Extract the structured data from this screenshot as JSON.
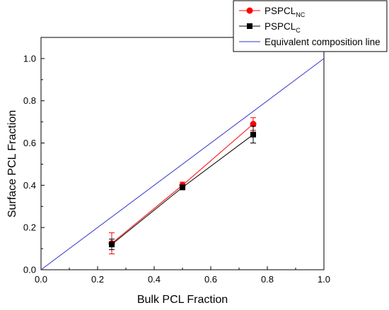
{
  "chart_data": {
    "type": "line",
    "title": "",
    "xlabel": "Bulk PCL Fraction",
    "ylabel": "Surface PCL Fraction",
    "xlim": [
      0.0,
      1.0
    ],
    "ylim": [
      0.0,
      1.1
    ],
    "xticks": [
      "0.0",
      "0.2",
      "0.4",
      "0.6",
      "0.8",
      "1.0"
    ],
    "yticks": [
      "0.0",
      "0.2",
      "0.4",
      "0.6",
      "0.8",
      "1.0"
    ],
    "grid": false,
    "legend_position": "top-right",
    "series": [
      {
        "name": "PSPCL",
        "name_subscript": "NC",
        "color": "#ff0000",
        "marker": "circle",
        "x": [
          0.25,
          0.5,
          0.75
        ],
        "y": [
          0.125,
          0.4,
          0.69
        ],
        "error": [
          0.05,
          0.015,
          0.03
        ]
      },
      {
        "name": "PSPCL",
        "name_subscript": "C",
        "color": "#000000",
        "marker": "square",
        "x": [
          0.25,
          0.5,
          0.75
        ],
        "y": [
          0.12,
          0.39,
          0.64
        ],
        "error": [
          0.025,
          0.01,
          0.04
        ]
      },
      {
        "name": "Equivalent composition line",
        "color": "#3333cc",
        "marker": "none",
        "x": [
          0.0,
          1.0
        ],
        "y": [
          0.0,
          1.0
        ]
      }
    ]
  }
}
